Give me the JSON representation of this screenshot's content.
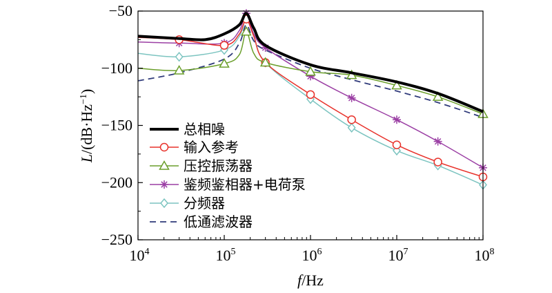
{
  "chart_data": {
    "type": "line",
    "xscale": "log",
    "xlim": [
      10000,
      100000000
    ],
    "ylim": [
      -250,
      -50
    ],
    "xticks": [
      {
        "value": 10000,
        "base": "10",
        "exp": "4"
      },
      {
        "value": 100000,
        "base": "10",
        "exp": "5"
      },
      {
        "value": 1000000,
        "base": "10",
        "exp": "6"
      },
      {
        "value": 10000000,
        "base": "10",
        "exp": "7"
      },
      {
        "value": 100000000,
        "base": "10",
        "exp": "8"
      }
    ],
    "yticks": [
      -50,
      -100,
      -150,
      -200,
      -250
    ],
    "xlabel": {
      "italic": "f",
      "rest": "/Hz"
    },
    "ylabel": {
      "italic": "L",
      "rest": "/(dB·Hz",
      "sup": "−1",
      "close": ")"
    },
    "legend_position": "left-bottom",
    "series": [
      {
        "name": "总相噪",
        "color": "#000000",
        "marker": "none",
        "dash": "solid",
        "width": 4,
        "x": [
          10000,
          30000,
          60000,
          100000,
          150000,
          180000,
          220000,
          300000,
          1000000,
          3000000,
          10000000,
          30000000,
          100000000
        ],
        "y": [
          -72,
          -74,
          -75,
          -70,
          -62,
          -52,
          -65,
          -80,
          -97,
          -104,
          -112,
          -122,
          -138
        ]
      },
      {
        "name": "输入参考",
        "color": "#e8312a",
        "marker": "circle",
        "dash": "solid",
        "width": 1.5,
        "x": [
          10000,
          30000,
          100000,
          150000,
          180000,
          220000,
          300000,
          1000000,
          3000000,
          10000000,
          30000000,
          100000000
        ],
        "y": [
          -73,
          -75,
          -80,
          -70,
          -57,
          -72,
          -95,
          -123,
          -145,
          -167,
          -182,
          -195
        ]
      },
      {
        "name": "压控振荡器",
        "color": "#6a9e2a",
        "marker": "triangle",
        "dash": "solid",
        "width": 1.5,
        "x": [
          10000,
          30000,
          100000,
          150000,
          180000,
          220000,
          300000,
          1000000,
          3000000,
          10000000,
          30000000,
          100000000
        ],
        "y": [
          -100,
          -102,
          -96,
          -88,
          -68,
          -87,
          -95,
          -103,
          -106,
          -115,
          -125,
          -140
        ]
      },
      {
        "name": "鉴频鉴相器+电荷泵",
        "color": "#9b3fa4",
        "marker": "star",
        "dash": "solid",
        "width": 1.5,
        "x": [
          10000,
          30000,
          100000,
          150000,
          180000,
          220000,
          300000,
          1000000,
          3000000,
          10000000,
          30000000,
          100000000
        ],
        "y": [
          -77,
          -78,
          -78,
          -67,
          -52,
          -70,
          -82,
          -107,
          -126,
          -145,
          -164,
          -187
        ]
      },
      {
        "name": "分频器",
        "color": "#7cc4c0",
        "marker": "diamond",
        "dash": "solid",
        "width": 1.5,
        "x": [
          10000,
          30000,
          100000,
          150000,
          180000,
          220000,
          300000,
          1000000,
          3000000,
          10000000,
          30000000,
          100000000
        ],
        "y": [
          -87,
          -90,
          -84,
          -72,
          -57,
          -72,
          -95,
          -127,
          -152,
          -172,
          -185,
          -202
        ]
      },
      {
        "name": "低通滤波器",
        "color": "#2f3a7a",
        "marker": "none",
        "dash": "dashed",
        "width": 1.8,
        "x": [
          10000,
          30000,
          100000,
          150000,
          180000,
          220000,
          300000,
          1000000,
          3000000,
          10000000,
          30000000,
          100000000
        ],
        "y": [
          -111,
          -104,
          -92,
          -78,
          -62,
          -76,
          -84,
          -100,
          -110,
          -120,
          -130,
          -143
        ]
      }
    ]
  }
}
